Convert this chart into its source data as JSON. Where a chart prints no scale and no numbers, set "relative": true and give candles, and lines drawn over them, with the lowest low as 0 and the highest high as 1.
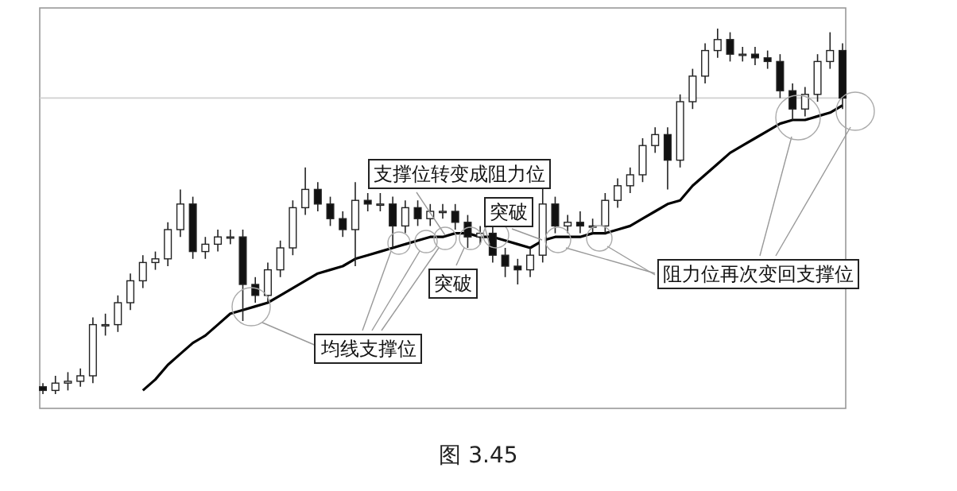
{
  "chart_data": {
    "type": "candlestick",
    "relative": true,
    "title": "图 3.45",
    "categories": [
      null,
      null,
      null,
      null,
      null,
      null,
      null,
      null,
      null,
      null,
      null,
      null,
      null,
      null,
      null,
      null,
      null,
      null,
      null,
      null,
      null,
      null,
      null,
      null,
      null,
      null,
      null,
      null,
      null,
      null,
      null,
      null,
      null,
      null,
      null,
      null,
      null,
      null,
      null,
      null,
      null,
      null,
      null,
      null,
      null,
      null,
      null,
      null,
      null,
      null,
      null,
      null,
      null,
      null,
      null,
      null,
      null,
      null,
      null,
      null,
      null,
      null,
      null,
      null,
      null
    ],
    "ohlc": [
      [
        0.02,
        0.03,
        0,
        0.01
      ],
      [
        0.01,
        0.05,
        0,
        0.03
      ],
      [
        0.03,
        0.06,
        0.01,
        0.035
      ],
      [
        0.035,
        0.07,
        0.02,
        0.05
      ],
      [
        0.05,
        0.21,
        0.03,
        0.19
      ],
      [
        0.19,
        0.22,
        0.16,
        0.19
      ],
      [
        0.19,
        0.27,
        0.17,
        0.25
      ],
      [
        0.25,
        0.33,
        0.23,
        0.31
      ],
      [
        0.31,
        0.38,
        0.29,
        0.36
      ],
      [
        0.36,
        0.39,
        0.34,
        0.37
      ],
      [
        0.37,
        0.47,
        0.35,
        0.45
      ],
      [
        0.45,
        0.56,
        0.43,
        0.52
      ],
      [
        0.52,
        0.54,
        0.37,
        0.39
      ],
      [
        0.39,
        0.43,
        0.37,
        0.41
      ],
      [
        0.41,
        0.45,
        0.39,
        0.43
      ],
      [
        0.43,
        0.45,
        0.41,
        0.43
      ],
      [
        0.43,
        0.45,
        0.2,
        0.3
      ],
      [
        0.3,
        0.32,
        0.25,
        0.27
      ],
      [
        0.27,
        0.36,
        0.25,
        0.34
      ],
      [
        0.34,
        0.42,
        0.32,
        0.4
      ],
      [
        0.4,
        0.53,
        0.38,
        0.51
      ],
      [
        0.51,
        0.62,
        0.49,
        0.56
      ],
      [
        0.56,
        0.58,
        0.5,
        0.52
      ],
      [
        0.52,
        0.54,
        0.46,
        0.48
      ],
      [
        0.48,
        0.5,
        0.43,
        0.45
      ],
      [
        0.45,
        0.58,
        0.35,
        0.53
      ],
      [
        0.53,
        0.55,
        0.5,
        0.52
      ],
      [
        0.52,
        0.55,
        0.5,
        0.52
      ],
      [
        0.52,
        0.54,
        0.4,
        0.46
      ],
      [
        0.46,
        0.53,
        0.44,
        0.51
      ],
      [
        0.51,
        0.53,
        0.46,
        0.48
      ],
      [
        0.48,
        0.52,
        0.46,
        0.5
      ],
      [
        0.5,
        0.52,
        0.48,
        0.5
      ],
      [
        0.5,
        0.52,
        0.45,
        0.47
      ],
      [
        0.47,
        0.49,
        0.4,
        0.43
      ],
      [
        0.43,
        0.46,
        0.41,
        0.44
      ],
      [
        0.44,
        0.46,
        0.36,
        0.38
      ],
      [
        0.38,
        0.4,
        0.32,
        0.35
      ],
      [
        0.35,
        0.37,
        0.3,
        0.34
      ],
      [
        0.34,
        0.4,
        0.32,
        0.38
      ],
      [
        0.38,
        0.57,
        0.36,
        0.52
      ],
      [
        0.52,
        0.54,
        0.44,
        0.46
      ],
      [
        0.46,
        0.49,
        0.44,
        0.47
      ],
      [
        0.47,
        0.5,
        0.44,
        0.46
      ],
      [
        0.46,
        0.48,
        0.44,
        0.46
      ],
      [
        0.46,
        0.55,
        0.44,
        0.53
      ],
      [
        0.53,
        0.59,
        0.51,
        0.57
      ],
      [
        0.57,
        0.62,
        0.55,
        0.6
      ],
      [
        0.6,
        0.7,
        0.58,
        0.68
      ],
      [
        0.68,
        0.73,
        0.66,
        0.71
      ],
      [
        0.71,
        0.73,
        0.56,
        0.64
      ],
      [
        0.64,
        0.82,
        0.62,
        0.8
      ],
      [
        0.8,
        0.89,
        0.78,
        0.87
      ],
      [
        0.87,
        0.96,
        0.85,
        0.94
      ],
      [
        0.94,
        1,
        0.92,
        0.97
      ],
      [
        0.97,
        0.99,
        0.91,
        0.93
      ],
      [
        0.93,
        0.95,
        0.91,
        0.93
      ],
      [
        0.93,
        0.95,
        0.9,
        0.92
      ],
      [
        0.92,
        0.94,
        0.89,
        0.91
      ],
      [
        0.91,
        0.93,
        0.81,
        0.83
      ],
      [
        0.83,
        0.85,
        0.75,
        0.78
      ],
      [
        0.78,
        0.84,
        0.76,
        0.82
      ],
      [
        0.82,
        0.93,
        0.8,
        0.91
      ],
      [
        0.91,
        0.99,
        0.89,
        0.94
      ],
      [
        0.94,
        0.96,
        0.78,
        0.81
      ]
    ],
    "series": [
      {
        "type": "line",
        "color": "#000000",
        "values": [
          null,
          null,
          null,
          null,
          null,
          null,
          null,
          null,
          0.01,
          0.04,
          0.08,
          0.11,
          0.14,
          0.16,
          0.19,
          0.22,
          0.23,
          0.24,
          0.25,
          0.27,
          0.29,
          0.31,
          0.33,
          0.34,
          0.35,
          0.37,
          0.38,
          0.39,
          0.4,
          0.41,
          0.42,
          0.43,
          0.43,
          0.44,
          0.44,
          0.43,
          0.43,
          0.42,
          0.41,
          0.4,
          0.42,
          0.43,
          0.43,
          0.43,
          0.44,
          0.44,
          0.45,
          0.46,
          0.48,
          0.5,
          0.52,
          0.53,
          0.57,
          0.6,
          0.63,
          0.66,
          0.68,
          0.7,
          0.72,
          0.74,
          0.75,
          0.75,
          0.76,
          0.77,
          0.79
        ]
      }
    ],
    "ref_lines": [
      {
        "axis": "y",
        "value": 0.81,
        "color": "#d0d0d0"
      }
    ],
    "annotations": [
      "支撑位转变成阻力位",
      "突破",
      "突破",
      "均线支撑位",
      "阻力位再次变回支撑位"
    ]
  }
}
